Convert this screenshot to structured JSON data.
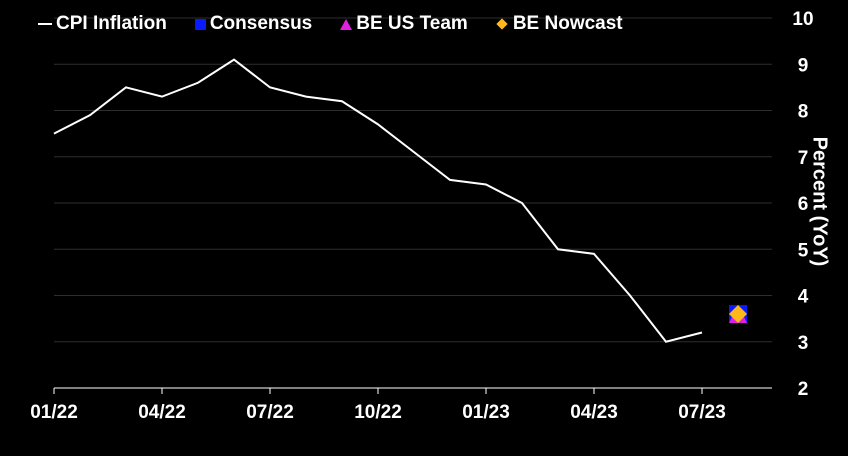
{
  "chart_data": {
    "type": "line",
    "title": "",
    "xlabel": "",
    "ylabel": "Percent (YoY)",
    "ylim": [
      2,
      10
    ],
    "yticks": [
      "2",
      "3",
      "4",
      "5",
      "6",
      "7",
      "8",
      "9",
      "10"
    ],
    "xtick_labels": [
      "01/22",
      "04/22",
      "07/22",
      "10/22",
      "01/23",
      "04/23",
      "07/23"
    ],
    "x": [
      "01/22",
      "02/22",
      "03/22",
      "04/22",
      "05/22",
      "06/22",
      "07/22",
      "08/22",
      "09/22",
      "10/22",
      "11/22",
      "12/22",
      "01/23",
      "02/23",
      "03/23",
      "04/23",
      "05/23",
      "06/23",
      "07/23"
    ],
    "series": [
      {
        "name": "CPI Inflation",
        "color": "#ffffff",
        "values": [
          7.5,
          7.9,
          8.5,
          8.3,
          8.6,
          9.1,
          8.5,
          8.3,
          8.2,
          7.7,
          7.1,
          6.5,
          6.4,
          6.0,
          5.0,
          4.9,
          4.0,
          3.0,
          3.2
        ]
      }
    ],
    "forecasts": [
      {
        "name": "Consensus",
        "marker": "square",
        "color": "#0a1aff",
        "x": "08/23",
        "value": 3.6
      },
      {
        "name": "BE US Team",
        "marker": "triangle",
        "color": "#e020e0",
        "x": "08/23",
        "value": 3.6
      },
      {
        "name": "BE Nowcast",
        "marker": "diamond",
        "color": "#ffb81c",
        "x": "08/23",
        "value": 3.6
      }
    ],
    "grid": true,
    "legend_position": "top-left"
  },
  "legend": {
    "cpi": "CPI Inflation",
    "consensus": "Consensus",
    "be_us_team": "BE US Team",
    "be_nowcast": "BE Nowcast"
  }
}
